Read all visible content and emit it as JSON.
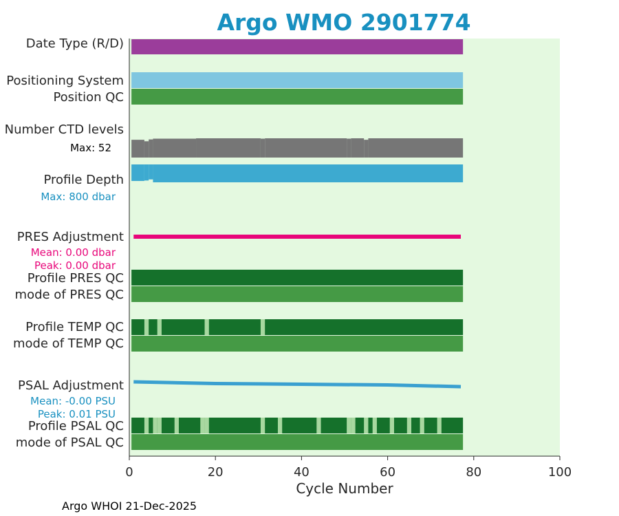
{
  "chart_data": {
    "type": "bar",
    "title": "Argo WMO 2901774",
    "xlabel": "Cycle Number",
    "xlim": [
      0,
      100
    ],
    "xticks": [
      "0",
      "20",
      "40",
      "60",
      "80",
      "100"
    ],
    "cycle_range": [
      1,
      77
    ],
    "footer": "Argo WHOI 21-Dec-2025",
    "rows": {
      "date_type": {
        "label": "Date Type (R/D)",
        "color": "#9b3d9b",
        "value": "R"
      },
      "positioning_system": {
        "label": "Positioning System",
        "color": "#7fc6e0"
      },
      "position_qc": {
        "label": "Position QC",
        "color": "#459a45"
      },
      "number_ctd_levels": {
        "label": "Number CTD levels",
        "max_label": "Max: 52",
        "max": 52,
        "color": "#767676",
        "values_by_cycle": [
          [
            1,
            48
          ],
          [
            4,
            44
          ],
          [
            5,
            49
          ],
          [
            6,
            51
          ],
          [
            16,
            52
          ],
          [
            31,
            51
          ],
          [
            32,
            52
          ],
          [
            51,
            51
          ],
          [
            52,
            52
          ],
          [
            55,
            48
          ],
          [
            56,
            52
          ]
        ]
      },
      "profile_depth": {
        "label": "Profile Depth",
        "max_label": "Max:  800 dbar",
        "max_dbar": 800,
        "color": "#3daad0",
        "values_by_cycle": [
          [
            1,
            740
          ],
          [
            4,
            720
          ],
          [
            5,
            670
          ],
          [
            6,
            800
          ]
        ]
      },
      "pres_adjustment": {
        "label": "PRES Adjustment",
        "mean_label": "Mean: 0.00 dbar",
        "peak_label": "Peak: 0.00 dbar",
        "mean": 0.0,
        "peak": 0.0,
        "color": "#e8067a"
      },
      "profile_pres_qc": {
        "label": "Profile PRES QC",
        "color": "#15712b",
        "grade": "A"
      },
      "mode_pres_qc": {
        "label": "mode of PRES QC",
        "color": "#459a45",
        "value": 1
      },
      "profile_temp_qc": {
        "label": "Profile TEMP QC",
        "color": "#15712b",
        "grade": "A",
        "light_color": "#a8d8a0",
        "light_cycles": [
          4,
          7,
          18,
          31
        ]
      },
      "mode_temp_qc": {
        "label": "mode of TEMP QC",
        "color": "#459a45",
        "value": 1
      },
      "psal_adjustment": {
        "label": "PSAL Adjustment",
        "mean_label": "Mean: -0.00 PSU",
        "peak_label": "Peak: 0.01 PSU",
        "mean": -0.0,
        "peak": 0.01,
        "color": "#3aa0d0"
      },
      "profile_psal_qc": {
        "label": "Profile PSAL QC",
        "color": "#15712b",
        "grade": "A",
        "light_color": "#a8d8a0",
        "light_cycles": [
          4,
          6,
          7,
          11,
          17,
          18,
          31,
          35,
          44,
          51,
          52,
          55,
          57,
          61,
          65,
          68,
          72
        ]
      },
      "mode_psal_qc": {
        "label": "mode of PSAL QC",
        "color": "#459a45",
        "value": 1
      }
    },
    "colors": {
      "plot_background": "#e4f9e0",
      "title": "#1890c0",
      "pres_text": "#e8067a",
      "depth_text": "#1890c0",
      "psal_text": "#1890c0"
    }
  }
}
